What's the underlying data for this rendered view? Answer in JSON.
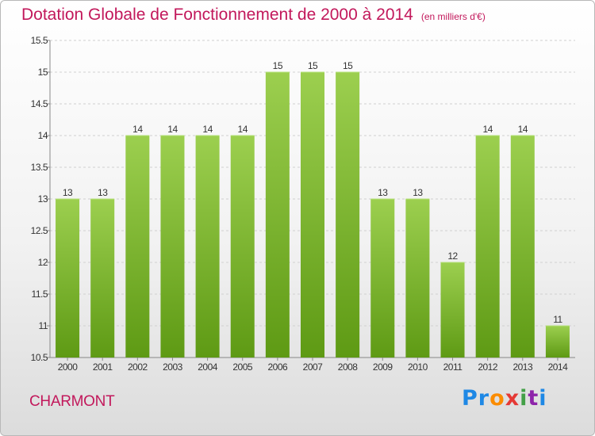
{
  "header": {
    "title": "Dotation Globale de Fonctionnement de 2000 à 2014",
    "unit": "(en milliers d'€)"
  },
  "footer": {
    "commune": "CHARMONT",
    "logo": "Proxiti"
  },
  "colors": {
    "title": "#c2185b",
    "bar_top": "#9ccf4f",
    "bar_bottom": "#5e9a14",
    "grid": "#d0d0d0"
  },
  "chart_data": {
    "type": "bar",
    "title": "Dotation Globale de Fonctionnement de 2000 à 2014",
    "subtitle": "(en milliers d'€)",
    "categories": [
      "2000",
      "2001",
      "2002",
      "2003",
      "2004",
      "2005",
      "2006",
      "2007",
      "2008",
      "2009",
      "2010",
      "2011",
      "2012",
      "2013",
      "2014"
    ],
    "values": [
      13,
      13,
      14,
      14,
      14,
      14,
      15,
      15,
      15,
      13,
      13,
      12,
      14,
      14,
      11
    ],
    "ylim": [
      10.5,
      15.5
    ],
    "yticks": [
      10.5,
      11,
      11.5,
      12,
      12.5,
      13,
      13.5,
      14,
      14.5,
      15,
      15.5
    ],
    "ytick_labels": [
      "10.5",
      "11",
      "11.5",
      "12",
      "12.5",
      "13",
      "13.5",
      "14",
      "14.5",
      "15",
      "15.5"
    ],
    "grid": "horizontal dashed",
    "xlabel": "",
    "ylabel": ""
  }
}
